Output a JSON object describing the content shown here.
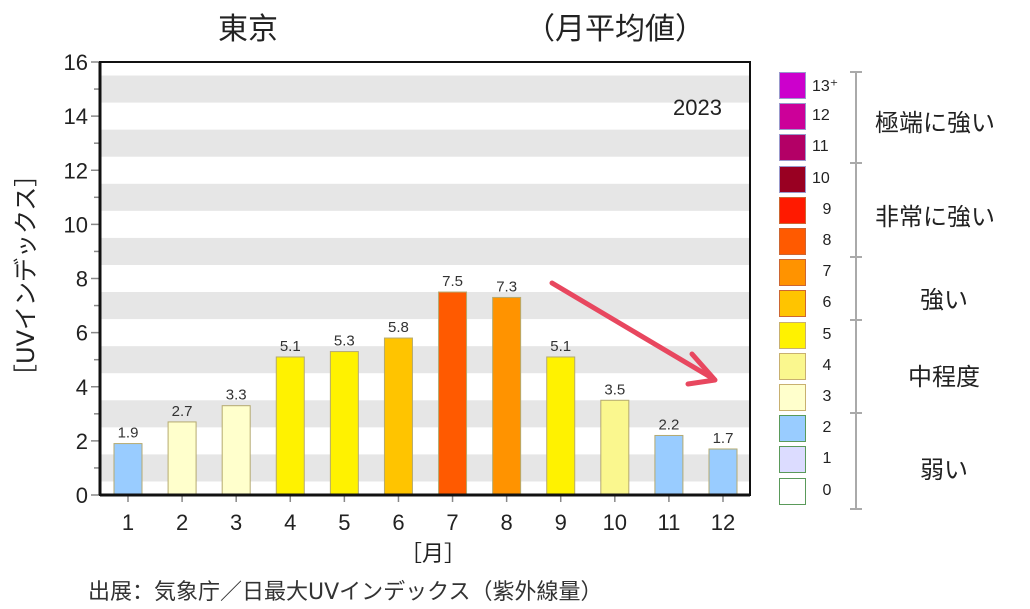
{
  "header": {
    "title_left": "東京",
    "title_right": "（月平均値）"
  },
  "chart_data": {
    "type": "bar",
    "title": "東京（月平均値）",
    "year_label": "2023",
    "xlabel": "［月］",
    "ylabel": "［UVインデックス］",
    "categories": [
      "1",
      "2",
      "3",
      "4",
      "5",
      "6",
      "7",
      "8",
      "9",
      "10",
      "11",
      "12"
    ],
    "values": [
      1.9,
      2.7,
      3.3,
      5.1,
      5.3,
      5.8,
      7.5,
      7.3,
      5.1,
      3.5,
      2.2,
      1.7
    ],
    "value_labels": [
      "1.9",
      "2.7",
      "3.3",
      "5.1",
      "5.3",
      "5.8",
      "7.5",
      "7.3",
      "5.1",
      "3.5",
      "2.2",
      "1.7"
    ],
    "bar_colors": [
      "#99ccff",
      "#ffffcc",
      "#ffffcc",
      "#fff200",
      "#fff200",
      "#ffc400",
      "#ff5a00",
      "#ff9300",
      "#fff200",
      "#faf78e",
      "#99ccff",
      "#99ccff"
    ],
    "ylim": [
      0,
      16
    ],
    "yticks": [
      "0",
      "2",
      "4",
      "6",
      "8",
      "10",
      "12",
      "14",
      "16"
    ],
    "grid": "alternating gray bands",
    "annotation": "red downward arrow from August toward December",
    "annotation_color": "#e8475f"
  },
  "legend": {
    "levels": [
      {
        "label": "13⁺",
        "color": "#cc00cc"
      },
      {
        "label": "12",
        "color": "#cc0099"
      },
      {
        "label": "11",
        "color": "#b30066"
      },
      {
        "label": "10",
        "color": "#990022"
      },
      {
        "label": "9",
        "color": "#ff1a00"
      },
      {
        "label": "8",
        "color": "#ff5a00"
      },
      {
        "label": "7",
        "color": "#ff9300"
      },
      {
        "label": "6",
        "color": "#ffc400"
      },
      {
        "label": "5",
        "color": "#fff200"
      },
      {
        "label": "4",
        "color": "#faf78e"
      },
      {
        "label": "3",
        "color": "#ffffcc"
      },
      {
        "label": "2",
        "color": "#99ccff"
      },
      {
        "label": "1",
        "color": "#dcdcff"
      },
      {
        "label": "0",
        "color": "#ffffff"
      }
    ],
    "categories": [
      {
        "label": "極端に強い"
      },
      {
        "label": "非常に強い"
      },
      {
        "label": "強い"
      },
      {
        "label": "中程度"
      },
      {
        "label": "弱い"
      }
    ]
  },
  "footer": {
    "caption": "出展：気象庁／日最大UVインデックス（紫外線量）"
  }
}
